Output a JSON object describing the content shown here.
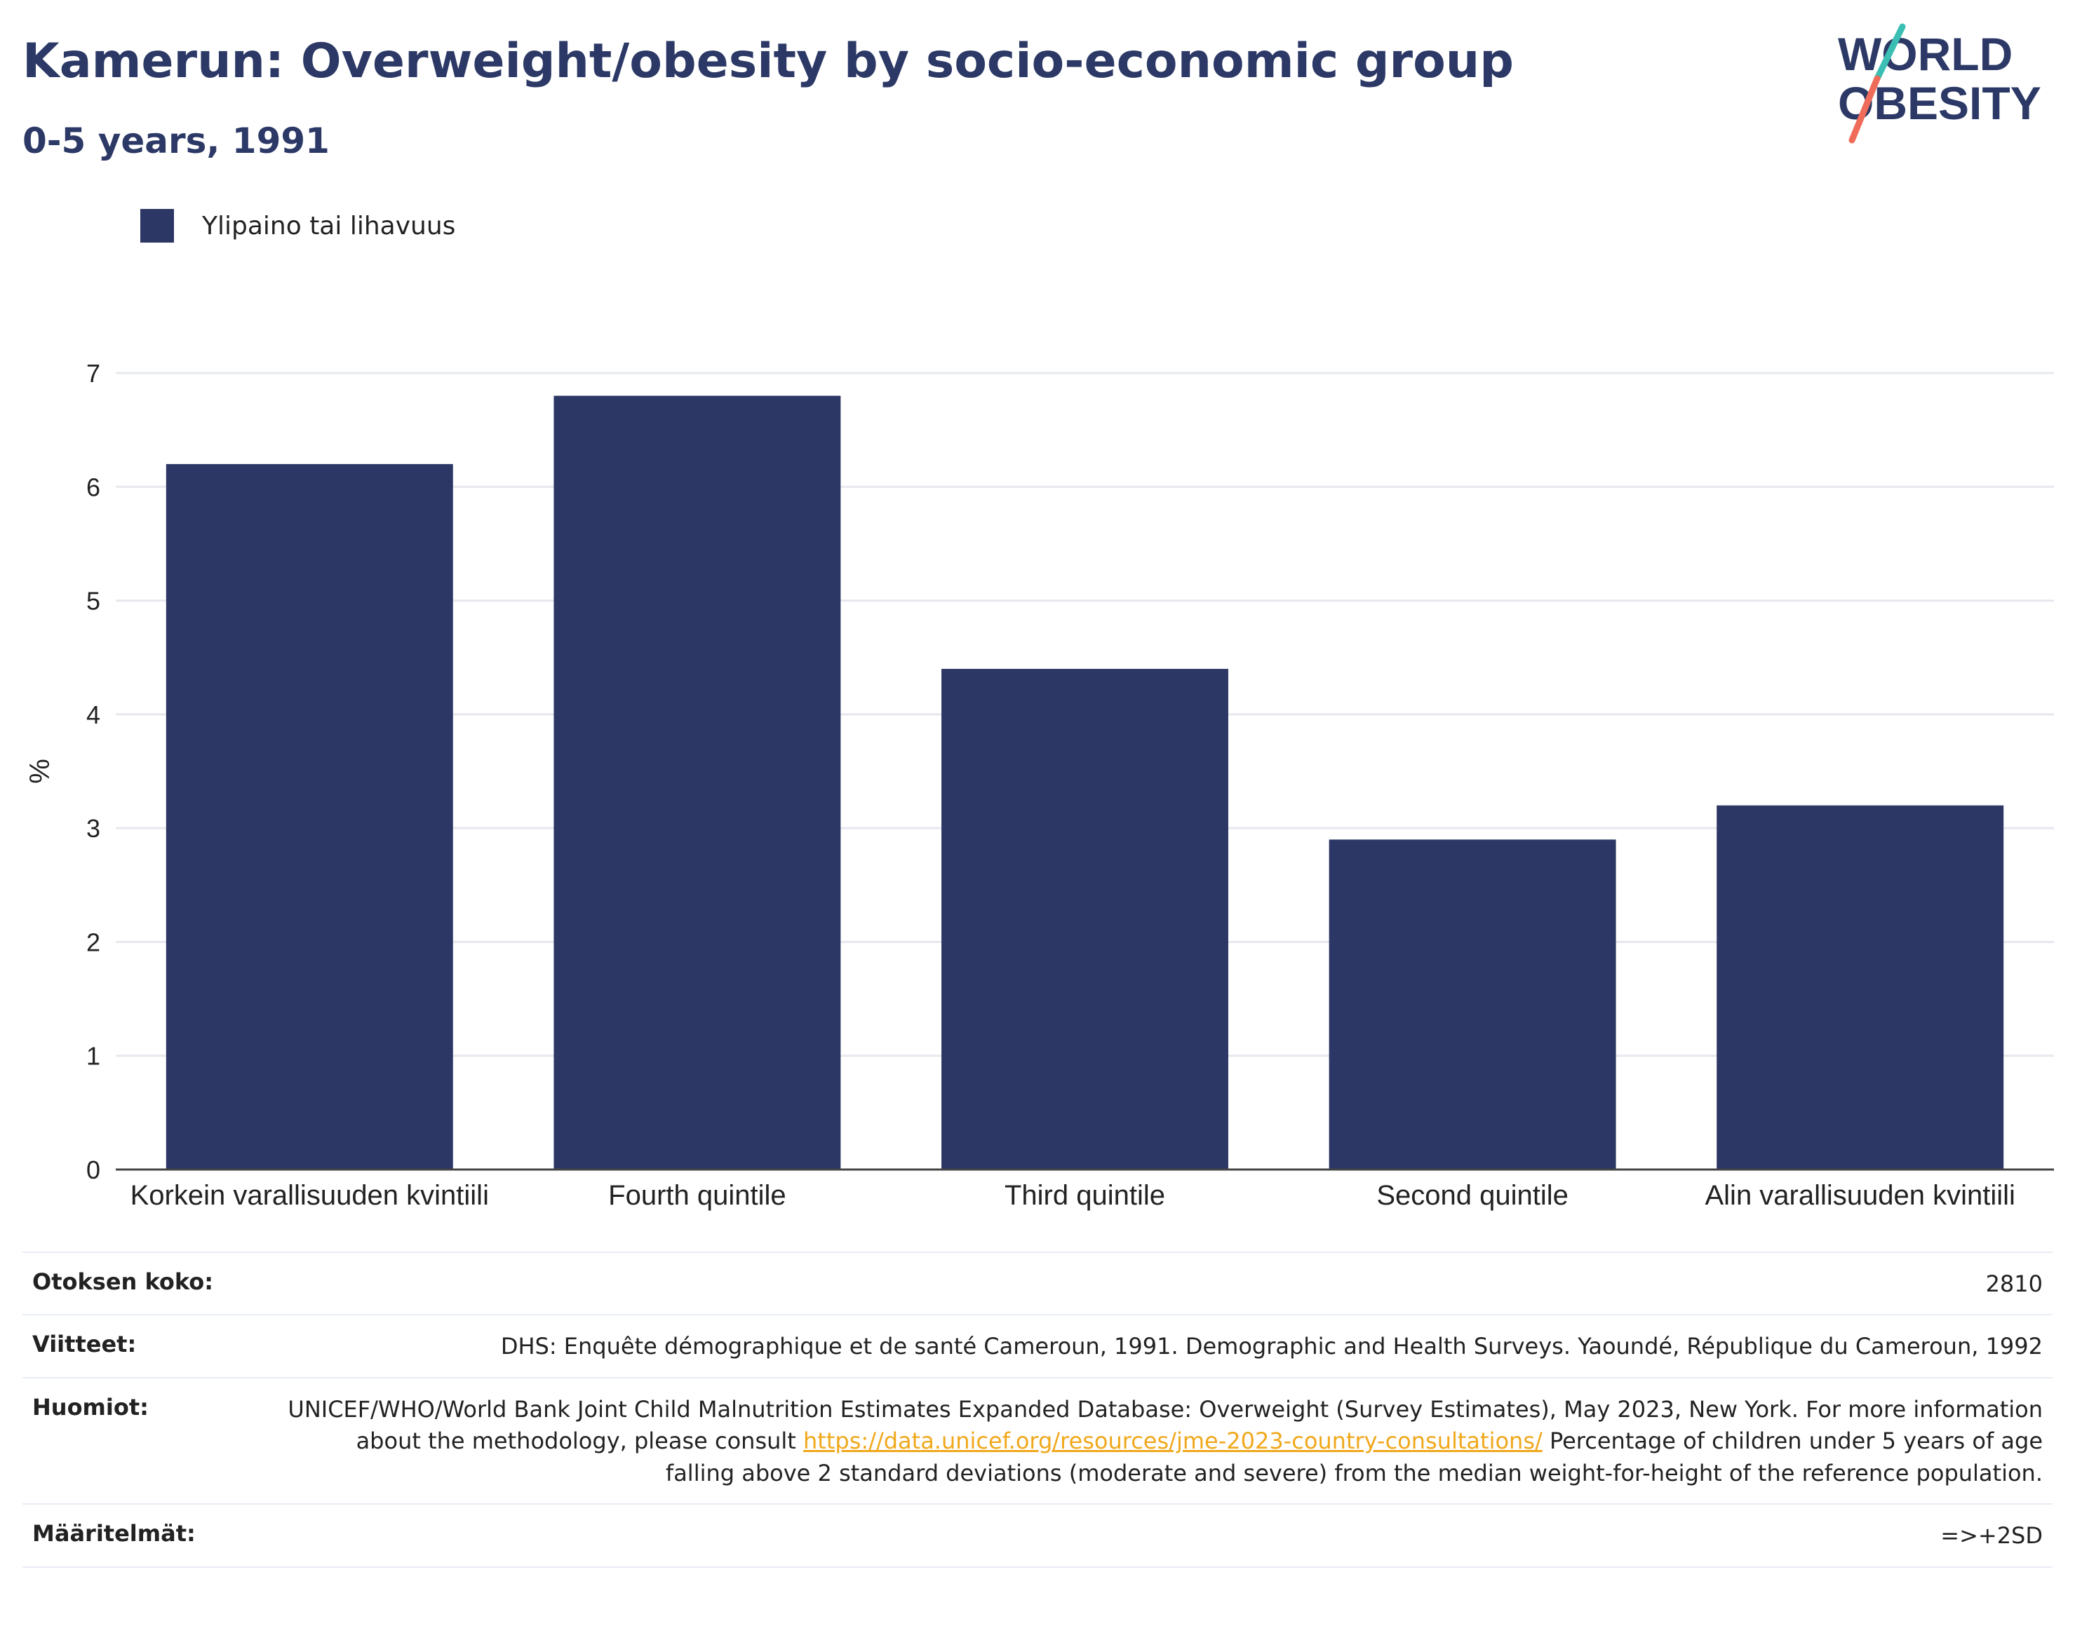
{
  "header": {
    "title": "Kamerun: Overweight/obesity by socio-economic group",
    "subtitle": "0-5 years, 1991"
  },
  "logo": {
    "line1": "WORLD",
    "line2": "OBESITY",
    "colors": {
      "text": "#2c3966",
      "slash_top": "#3bbfb4",
      "slash_bottom": "#ef6b5a"
    }
  },
  "chart_data": {
    "type": "bar",
    "categories": [
      "Korkein varallisuuden kvintiili",
      "Fourth quintile",
      "Third quintile",
      "Second quintile",
      "Alin varallisuuden kvintiili"
    ],
    "series": [
      {
        "name": "Ylipaino tai lihavuus",
        "values": [
          6.2,
          6.8,
          4.4,
          2.9,
          3.2
        ],
        "color": "#2c3765"
      }
    ],
    "ylabel": "%",
    "ylim": [
      0,
      7
    ],
    "yticks": [
      0,
      1,
      2,
      3,
      4,
      5,
      6,
      7
    ],
    "grid": true,
    "legend_position": "top-left"
  },
  "meta": {
    "sample_size": {
      "label": "Otoksen koko:",
      "value": "2810"
    },
    "references": {
      "label": "Viitteet:",
      "value": "DHS: Enquête démographique et de santé Cameroun, 1991. Demographic and Health Surveys. Yaoundé, République du Cameroun, 1992"
    },
    "notes": {
      "label": "Huomiot:",
      "text_before": "UNICEF/WHO/World Bank Joint Child Malnutrition Estimates Expanded Database: Overweight (Survey Estimates), May 2023, New York. For more information about the methodology, please consult ",
      "link": "https://data.unicef.org/resources/jme-2023-country-consultations/",
      "text_after": " Percentage of children under 5 years of age falling above 2 standard deviations (moderate and severe) from the median weight-for-height of the reference population."
    },
    "definitions": {
      "label": "Määritelmät:",
      "value": "=>+2SD"
    }
  }
}
